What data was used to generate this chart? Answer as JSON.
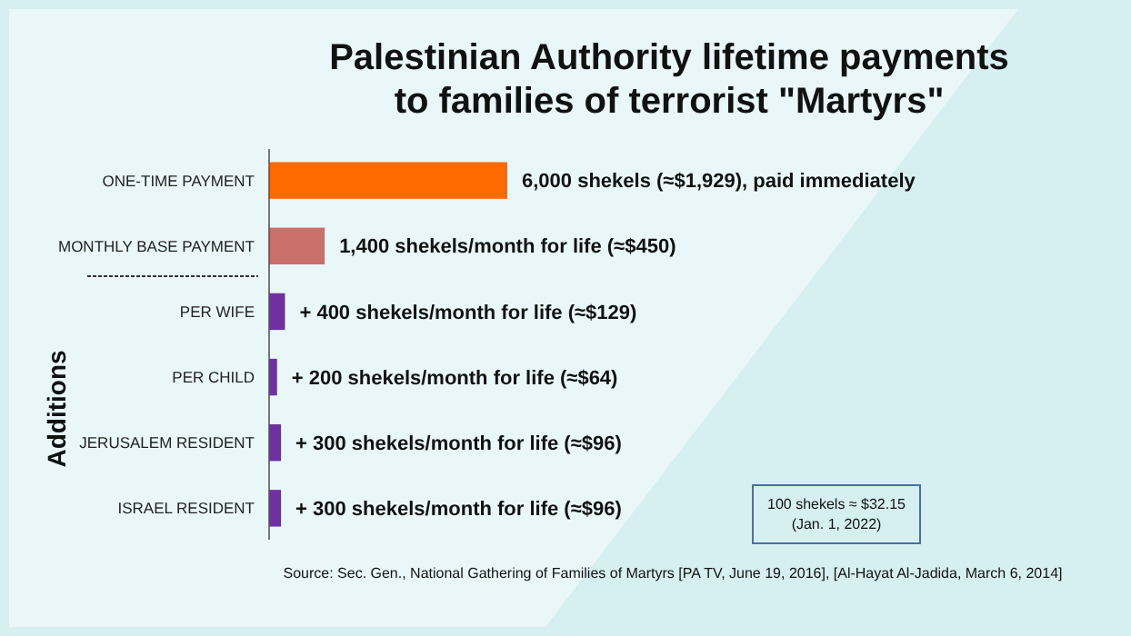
{
  "chart_data": {
    "type": "bar",
    "orientation": "horizontal",
    "title": "Palestinian Authority lifetime payments\nto families of terrorist \"Martyrs\"",
    "ylabel": "Additions",
    "categories": [
      "ONE-TIME PAYMENT",
      "MONTHLY BASE PAYMENT",
      "PER WIFE",
      "PER CHILD",
      "JERUSALEM RESIDENT",
      "ISRAEL RESIDENT"
    ],
    "values": [
      6000,
      1400,
      400,
      200,
      300,
      300
    ],
    "colors": [
      "#ff6a00",
      "#c9706b",
      "#7030a0",
      "#7030a0",
      "#7030a0",
      "#7030a0"
    ],
    "value_labels": [
      "6,000 shekels (≈$1,929), paid immediately",
      "1,400 shekels/month for life (≈$450)",
      "+ 400 shekels/month for life (≈$129)",
      "+ 200 shekels/month for life (≈$64)",
      "+ 300 shekels/month for life (≈$96)",
      "+ 300 shekels/month for life (≈$96)"
    ],
    "annotations": [
      "100 shekels ≈ $32.15\n(Jan. 1, 2022)",
      "Source: Sec. Gen., National Gathering of Families of Martyrs [PA TV, June 19, 2016], [Al-Hayat Al-Jadida, March 6, 2014]"
    ],
    "grid": false
  }
}
